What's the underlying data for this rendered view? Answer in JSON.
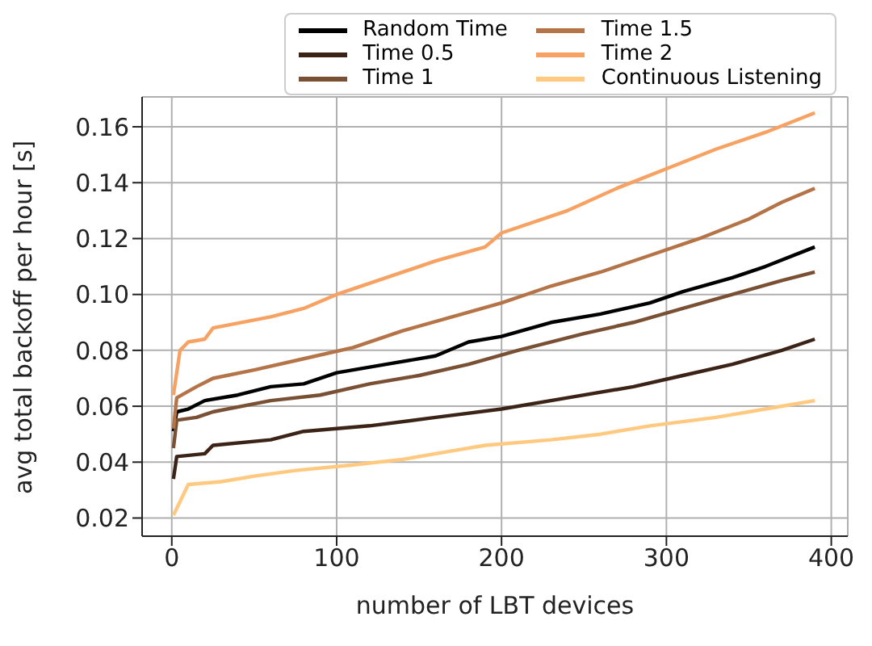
{
  "chart_data": {
    "type": "line",
    "xlabel": "number of LBT devices",
    "ylabel": "avg total backoff per hour [s]",
    "xlim": [
      -18,
      410
    ],
    "ylim": [
      0.0135,
      0.1707
    ],
    "xticks": [
      0,
      100,
      200,
      300,
      400
    ],
    "yticks": [
      {
        "value": 0.02,
        "label": "0.02"
      },
      {
        "value": 0.04,
        "label": "0.04"
      },
      {
        "value": 0.06,
        "label": "0.06"
      },
      {
        "value": 0.08,
        "label": "0.08"
      },
      {
        "value": 0.1,
        "label": "0.10"
      },
      {
        "value": 0.12,
        "label": "0.12"
      },
      {
        "value": 0.14,
        "label": "0.14"
      },
      {
        "value": 0.16,
        "label": "0.16"
      }
    ],
    "grid": true,
    "legend": "top",
    "marker": "none",
    "line_style": "solid",
    "series": [
      {
        "name": "Random Time",
        "color": "#000000",
        "x": [
          1,
          3,
          10,
          20,
          40,
          60,
          80,
          100,
          130,
          160,
          180,
          200,
          230,
          260,
          290,
          310,
          340,
          360,
          390
        ],
        "values": [
          0.051,
          0.058,
          0.059,
          0.062,
          0.064,
          0.067,
          0.068,
          0.072,
          0.075,
          0.078,
          0.083,
          0.085,
          0.09,
          0.093,
          0.097,
          0.101,
          0.106,
          0.11,
          0.117
        ]
      },
      {
        "name": "Time 0.5",
        "color": "#3b2417",
        "x": [
          1,
          3,
          20,
          25,
          60,
          80,
          120,
          160,
          200,
          240,
          280,
          310,
          340,
          370,
          390
        ],
        "values": [
          0.034,
          0.042,
          0.043,
          0.046,
          0.048,
          0.051,
          0.053,
          0.056,
          0.059,
          0.063,
          0.067,
          0.071,
          0.075,
          0.08,
          0.084
        ]
      },
      {
        "name": "Time 1",
        "color": "#7a5035",
        "x": [
          1,
          3,
          15,
          25,
          60,
          90,
          120,
          150,
          180,
          210,
          250,
          280,
          310,
          340,
          370,
          390
        ],
        "values": [
          0.045,
          0.055,
          0.056,
          0.058,
          0.062,
          0.064,
          0.068,
          0.071,
          0.075,
          0.08,
          0.086,
          0.09,
          0.095,
          0.1,
          0.105,
          0.108
        ]
      },
      {
        "name": "Time 1.5",
        "color": "#b57448",
        "x": [
          1,
          3,
          15,
          25,
          50,
          80,
          110,
          140,
          170,
          200,
          230,
          260,
          290,
          320,
          350,
          370,
          390
        ],
        "values": [
          0.052,
          0.063,
          0.067,
          0.07,
          0.073,
          0.077,
          0.081,
          0.087,
          0.092,
          0.097,
          0.103,
          0.108,
          0.114,
          0.12,
          0.127,
          0.133,
          0.138
        ]
      },
      {
        "name": "Time 2",
        "color": "#f7a262",
        "x": [
          1,
          5,
          10,
          20,
          25,
          60,
          80,
          100,
          130,
          160,
          190,
          200,
          240,
          270,
          300,
          330,
          360,
          390
        ],
        "values": [
          0.064,
          0.08,
          0.083,
          0.084,
          0.088,
          0.092,
          0.095,
          0.1,
          0.106,
          0.112,
          0.117,
          0.122,
          0.13,
          0.138,
          0.145,
          0.152,
          0.158,
          0.165
        ]
      },
      {
        "name": "Continuous Listening",
        "color": "#ffc980",
        "x": [
          1,
          10,
          30,
          50,
          75,
          110,
          140,
          170,
          190,
          230,
          260,
          290,
          330,
          360,
          390
        ],
        "values": [
          0.021,
          0.032,
          0.033,
          0.035,
          0.037,
          0.039,
          0.041,
          0.044,
          0.046,
          0.048,
          0.05,
          0.053,
          0.056,
          0.059,
          0.062
        ]
      }
    ]
  }
}
